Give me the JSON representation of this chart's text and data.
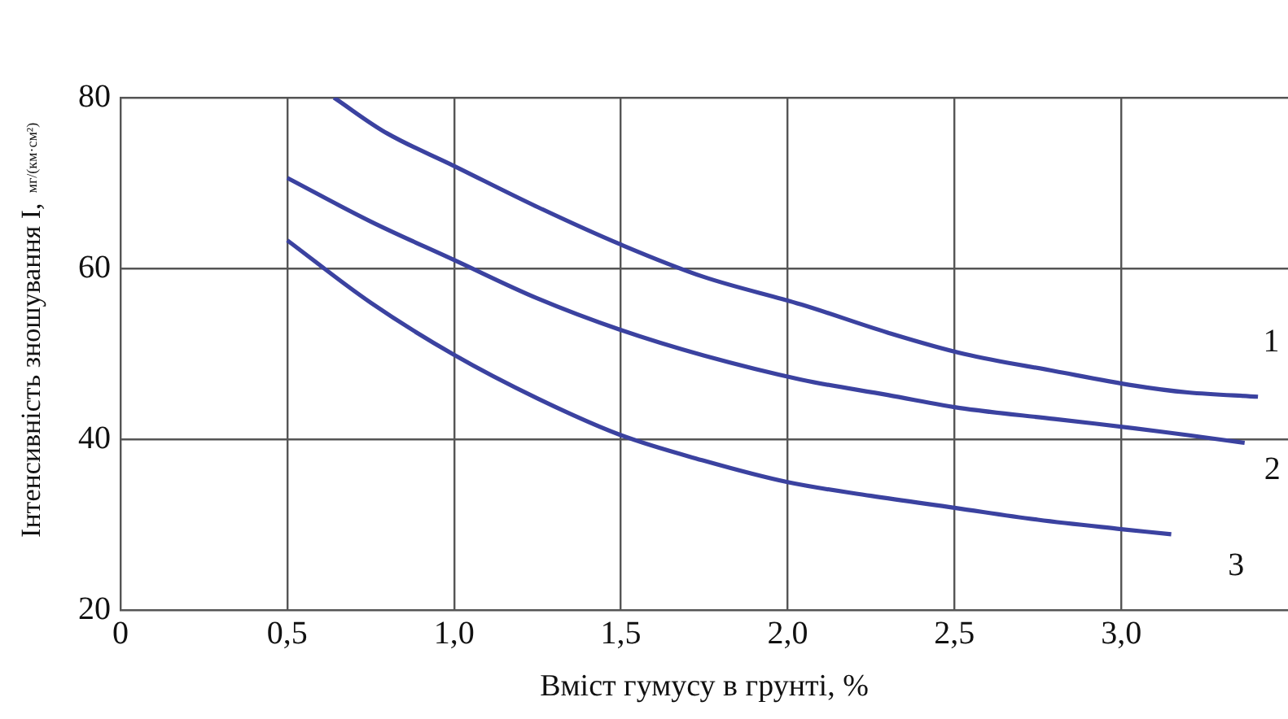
{
  "chart_data": {
    "type": "line",
    "xlabel": "Вміст гумусу в грунті, %",
    "ylabel": "Інтенсивність зношування I, мг/(км·см²)",
    "xlim": [
      0,
      3.5
    ],
    "ylim": [
      20,
      80
    ],
    "xticks": [
      0,
      {
        "value": 0.5,
        "label": "0,5"
      },
      {
        "value": 1,
        "label": "1,0"
      },
      {
        "value": 1.5,
        "label": "1,5"
      },
      {
        "value": 2,
        "label": "2,0"
      },
      {
        "value": 2.5,
        "label": "2,5"
      },
      {
        "value": 3,
        "label": "3,0"
      }
    ],
    "yticks": [
      20,
      40,
      60,
      80
    ],
    "grid": true,
    "legend": false,
    "marker": "none",
    "line_style": "solid",
    "series": [
      {
        "name": "1",
        "color": "#3b42a0",
        "x": [
          0.64,
          0.8,
          1.0,
          1.25,
          1.5,
          1.75,
          2.04,
          2.3,
          2.53,
          2.8,
          3.04,
          3.2,
          3.41
        ],
        "values": [
          80,
          75.8,
          72,
          67.2,
          62.8,
          59,
          55.8,
          52.5,
          50,
          48,
          46.3,
          45.5,
          45
        ]
      },
      {
        "name": "2",
        "color": "#3b42a0",
        "x": [
          0.5,
          0.75,
          1.0,
          1.25,
          1.5,
          1.75,
          2.04,
          2.3,
          2.53,
          2.8,
          3.04,
          3.2,
          3.37
        ],
        "values": [
          70.6,
          65.5,
          61,
          56.5,
          52.8,
          49.8,
          47,
          45.2,
          43.6,
          42.4,
          41.3,
          40.5,
          39.6
        ]
      },
      {
        "name": "3",
        "color": "#3b42a0",
        "x": [
          0.5,
          0.75,
          1.0,
          1.25,
          1.5,
          1.75,
          2.0,
          2.25,
          2.5,
          2.75,
          3.0,
          3.15
        ],
        "values": [
          63.3,
          56,
          49.9,
          44.8,
          40.5,
          37.5,
          35,
          33.4,
          32,
          30.6,
          29.5,
          28.9
        ]
      }
    ]
  }
}
